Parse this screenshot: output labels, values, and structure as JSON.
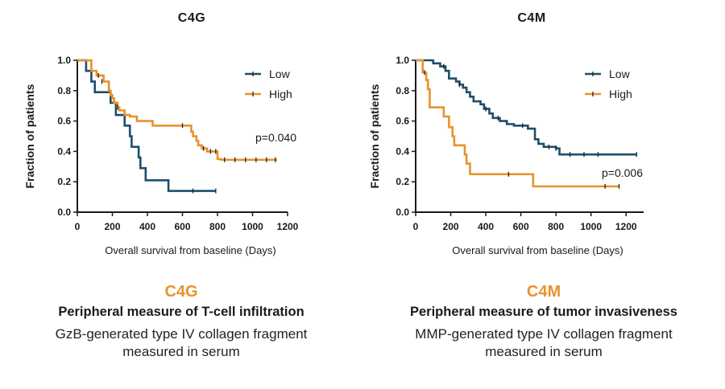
{
  "colors": {
    "low": "#1d4e6b",
    "high": "#e8922c",
    "axis": "#1a1a1a"
  },
  "charts": [
    {
      "title": "C4G",
      "caption": {
        "name": "C4G",
        "heading": "Peripheral measure of T-cell infiltration",
        "body_line1": "GzB-generated type IV collagen fragment",
        "body_line2": "measured in serum"
      },
      "pvalue": "p=0.040"
    },
    {
      "title": "C4M",
      "caption": {
        "name": "C4M",
        "heading": "Peripheral measure of tumor invasiveness",
        "body_line1": "MMP-generated type IV collagen fragment",
        "body_line2": "measured in serum"
      },
      "pvalue": "p=0.006"
    }
  ],
  "chart_data": [
    {
      "type": "line",
      "title": "C4G",
      "xlabel": "Overall survival from baseline (Days)",
      "ylabel": "Fraction of patients",
      "xlim": [
        0,
        1200
      ],
      "ylim": [
        0,
        1.0
      ],
      "xticks": [
        "0",
        "200",
        "400",
        "600",
        "800",
        "1000",
        "1200"
      ],
      "yticks": [
        "0.0",
        "0.2",
        "0.4",
        "0.6",
        "0.8",
        "1.0"
      ],
      "legend": "top-right",
      "annotation": "p=0.040",
      "series": [
        {
          "name": "Low",
          "color": "#1d4e6b",
          "steps": [
            [
              0,
              1.0
            ],
            [
              50,
              0.93
            ],
            [
              80,
              0.86
            ],
            [
              100,
              0.79
            ],
            [
              190,
              0.72
            ],
            [
              220,
              0.64
            ],
            [
              270,
              0.57
            ],
            [
              300,
              0.5
            ],
            [
              310,
              0.43
            ],
            [
              350,
              0.36
            ],
            [
              360,
              0.29
            ],
            [
              390,
              0.21
            ],
            [
              520,
              0.14
            ],
            [
              790,
              0.14
            ]
          ],
          "censored": [
            [
              660,
              0.14
            ],
            [
              790,
              0.14
            ]
          ]
        },
        {
          "name": "High",
          "color": "#e8922c",
          "steps": [
            [
              0,
              1.0
            ],
            [
              80,
              0.93
            ],
            [
              110,
              0.9
            ],
            [
              150,
              0.86
            ],
            [
              180,
              0.8
            ],
            [
              190,
              0.77
            ],
            [
              200,
              0.75
            ],
            [
              210,
              0.72
            ],
            [
              230,
              0.69
            ],
            [
              240,
              0.67
            ],
            [
              270,
              0.64
            ],
            [
              300,
              0.63
            ],
            [
              340,
              0.6
            ],
            [
              430,
              0.57
            ],
            [
              650,
              0.53
            ],
            [
              660,
              0.5
            ],
            [
              680,
              0.47
            ],
            [
              690,
              0.44
            ],
            [
              710,
              0.42
            ],
            [
              740,
              0.4
            ],
            [
              800,
              0.35
            ],
            [
              820,
              0.345
            ],
            [
              1140,
              0.345
            ]
          ],
          "censored": [
            [
              120,
              0.9
            ],
            [
              140,
              0.86
            ],
            [
              230,
              0.69
            ],
            [
              600,
              0.57
            ],
            [
              720,
              0.42
            ],
            [
              760,
              0.4
            ],
            [
              790,
              0.4
            ],
            [
              840,
              0.345
            ],
            [
              900,
              0.345
            ],
            [
              960,
              0.345
            ],
            [
              1020,
              0.345
            ],
            [
              1080,
              0.345
            ],
            [
              1130,
              0.345
            ]
          ]
        }
      ]
    },
    {
      "type": "line",
      "title": "C4M",
      "xlabel": "Overall survival from baseline (Days)",
      "ylabel": "Fraction of patients",
      "xlim": [
        0,
        1300
      ],
      "ylim": [
        0,
        1.0
      ],
      "xticks": [
        "0",
        "200",
        "400",
        "600",
        "800",
        "1000",
        "1200"
      ],
      "yticks": [
        "0.0",
        "0.2",
        "0.4",
        "0.6",
        "0.8",
        "1.0"
      ],
      "legend": "top-right",
      "annotation": "p=0.006",
      "series": [
        {
          "name": "Low",
          "color": "#1d4e6b",
          "steps": [
            [
              0,
              1.0
            ],
            [
              100,
              0.98
            ],
            [
              140,
              0.96
            ],
            [
              170,
              0.93
            ],
            [
              190,
              0.88
            ],
            [
              230,
              0.86
            ],
            [
              250,
              0.84
            ],
            [
              270,
              0.82
            ],
            [
              290,
              0.79
            ],
            [
              310,
              0.76
            ],
            [
              330,
              0.73
            ],
            [
              370,
              0.71
            ],
            [
              390,
              0.68
            ],
            [
              420,
              0.65
            ],
            [
              440,
              0.62
            ],
            [
              480,
              0.6
            ],
            [
              520,
              0.58
            ],
            [
              560,
              0.57
            ],
            [
              640,
              0.55
            ],
            [
              680,
              0.48
            ],
            [
              700,
              0.45
            ],
            [
              730,
              0.43
            ],
            [
              800,
              0.42
            ],
            [
              820,
              0.38
            ],
            [
              1260,
              0.38
            ]
          ],
          "censored": [
            [
              160,
              0.96
            ],
            [
              250,
              0.84
            ],
            [
              400,
              0.68
            ],
            [
              470,
              0.62
            ],
            [
              610,
              0.57
            ],
            [
              760,
              0.43
            ],
            [
              800,
              0.42
            ],
            [
              880,
              0.38
            ],
            [
              960,
              0.38
            ],
            [
              1040,
              0.38
            ],
            [
              1260,
              0.38
            ]
          ]
        },
        {
          "name": "High",
          "color": "#e8922c",
          "steps": [
            [
              0,
              1.0
            ],
            [
              40,
              0.92
            ],
            [
              60,
              0.87
            ],
            [
              70,
              0.81
            ],
            [
              80,
              0.69
            ],
            [
              160,
              0.63
            ],
            [
              190,
              0.56
            ],
            [
              210,
              0.5
            ],
            [
              220,
              0.44
            ],
            [
              280,
              0.38
            ],
            [
              290,
              0.32
            ],
            [
              310,
              0.25
            ],
            [
              670,
              0.17
            ],
            [
              1160,
              0.17
            ]
          ],
          "censored": [
            [
              50,
              0.92
            ],
            [
              530,
              0.25
            ],
            [
              1080,
              0.17
            ],
            [
              1160,
              0.17
            ]
          ]
        }
      ]
    }
  ]
}
